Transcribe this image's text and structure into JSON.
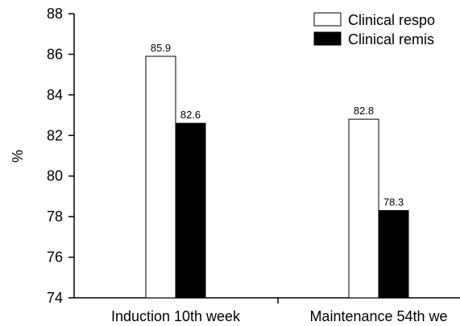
{
  "chart_data": {
    "type": "bar",
    "title": "",
    "xlabel": "",
    "ylabel": "%",
    "ylim": [
      74,
      88
    ],
    "yticks": [
      74,
      76,
      78,
      80,
      82,
      84,
      86,
      88
    ],
    "grid": false,
    "legend_position": "top-right",
    "categories": [
      "Induction 10th week",
      "Maintenance 54th we"
    ],
    "series": [
      {
        "name": "Clinical respo",
        "color": "#ffffff",
        "values": [
          85.9,
          82.8
        ]
      },
      {
        "name": "Clinical remis",
        "color": "#000000",
        "values": [
          82.6,
          78.3
        ]
      }
    ]
  }
}
